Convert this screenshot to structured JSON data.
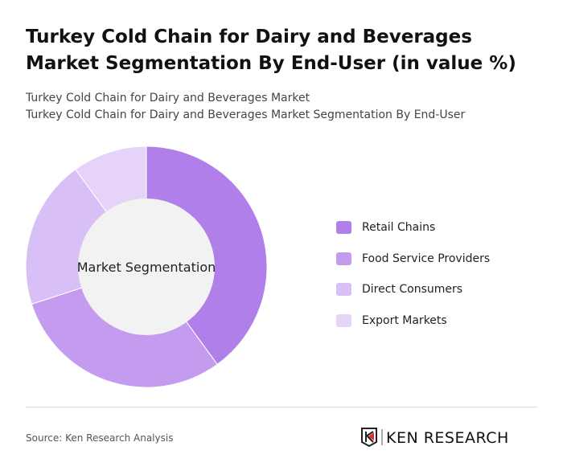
{
  "title": "Turkey Cold Chain for Dairy and Beverages Market Segmentation By End-User (in value %)",
  "subtitle1": "Turkey Cold Chain for Dairy and Beverages Market",
  "subtitle2": "Turkey Cold Chain for Dairy and Beverages Market Segmentation By End-User",
  "source": "Source: Ken Research Analysis",
  "logo_text": "KEN RESEARCH",
  "chart_data": {
    "type": "pie",
    "variant": "donut",
    "center_label": "Market Segmentation",
    "categories": [
      "Retail Chains",
      "Food Service Providers",
      "Direct Consumers",
      "Export Markets"
    ],
    "values": [
      40,
      30,
      20,
      10
    ],
    "colors": [
      "#b07fe9",
      "#c49cef",
      "#d8bff5",
      "#e5d4f8"
    ],
    "legend_position": "right"
  }
}
